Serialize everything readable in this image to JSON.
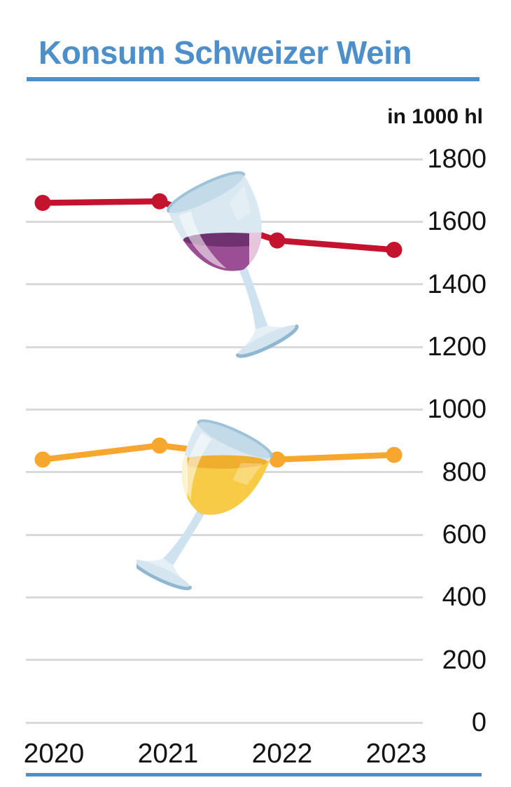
{
  "title": "Konsum Schweizer Wein",
  "unit_label": "in 1000 hl",
  "colors": {
    "title-blue": "#4C8FCB",
    "text-black": "#131313",
    "grid-gray": "#D9D9D9",
    "wine-red": "#C4132F",
    "wine-orange": "#F7A62E",
    "red-wine-fill": "#9C4E95",
    "red-wine-surface": "#6F3170",
    "red-wine-light": "#E7C6DD",
    "white-wine-fill": "#F8CB46",
    "white-wine-surface": "#EFAE2E",
    "white-wine-light": "#FCF3CF",
    "glass-blue": "#D9E8F1",
    "glass-blue-mid": "#C3DAE9",
    "glass-blue-dark": "#9EC2D8",
    "glass-foot": "#D4E5F0",
    "glass-stem": "#CFE2EF",
    "glass-flare": "#E4EFF6",
    "glass-edge": "#8FB8D0"
  },
  "chart_data": {
    "type": "line",
    "title": "Konsum Schweizer Wein",
    "unit": "in 1000 hl",
    "x": [
      "2020",
      "2021",
      "2022",
      "2023"
    ],
    "ylim": [
      0,
      1800
    ],
    "yticks": [
      0,
      200,
      400,
      600,
      800,
      1000,
      1200,
      1400,
      1600,
      1800
    ],
    "grid": true,
    "legend": "none - series indicated by red and white wine glass illustrations",
    "series": [
      {
        "name": "red_wine",
        "icon": "red-wine-glass-icon",
        "color_key": "wine-red",
        "values": [
          1660,
          1665,
          1540,
          1510
        ]
      },
      {
        "name": "white_wine",
        "icon": "white-wine-glass-icon",
        "color_key": "wine-orange",
        "values": [
          840,
          885,
          840,
          855
        ]
      }
    ]
  }
}
